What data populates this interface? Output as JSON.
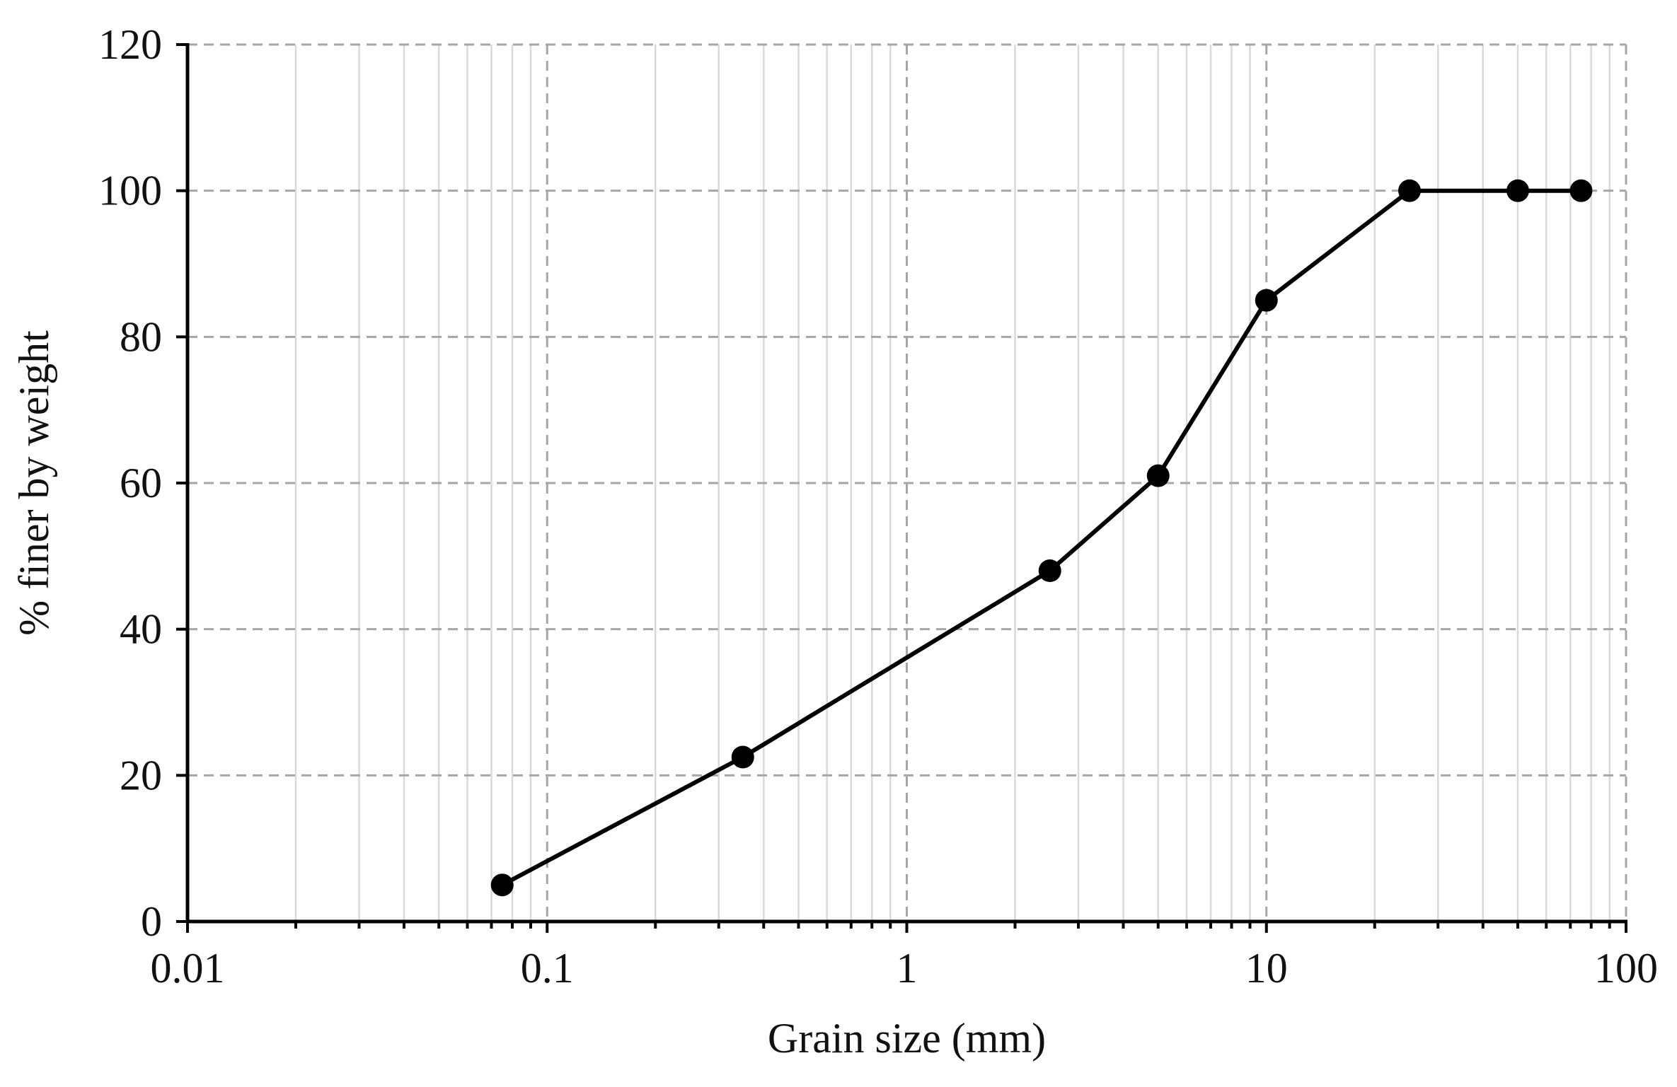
{
  "chart_data": {
    "type": "scatter",
    "title": "",
    "xlabel": "Grain size (mm)",
    "ylabel": "% finer by weight",
    "x_scale": "log",
    "xlim": [
      0.01,
      100
    ],
    "ylim": [
      0,
      120
    ],
    "x_ticks": [
      0.01,
      0.1,
      1,
      10,
      100
    ],
    "x_tick_labels": [
      "0.01",
      "0.1",
      "1",
      "10",
      "100"
    ],
    "y_ticks": [
      0,
      20,
      40,
      60,
      80,
      100,
      120
    ],
    "y_tick_labels": [
      "0",
      "20",
      "40",
      "60",
      "80",
      "100",
      "120"
    ],
    "grid": true,
    "grid_style": "dashed",
    "legend": "none",
    "colors": {
      "line": "#000000",
      "marker": "#000000",
      "major_grid": "#a6a6a6",
      "minor_grid": "#d9d9d9",
      "axis": "#000000"
    },
    "series": [
      {
        "lines": true,
        "markers": true,
        "x": [
          0.075,
          0.35,
          2.5,
          5,
          10,
          25,
          50,
          75
        ],
        "y": [
          5,
          22.5,
          48,
          61,
          85,
          100,
          100,
          100
        ]
      }
    ]
  }
}
